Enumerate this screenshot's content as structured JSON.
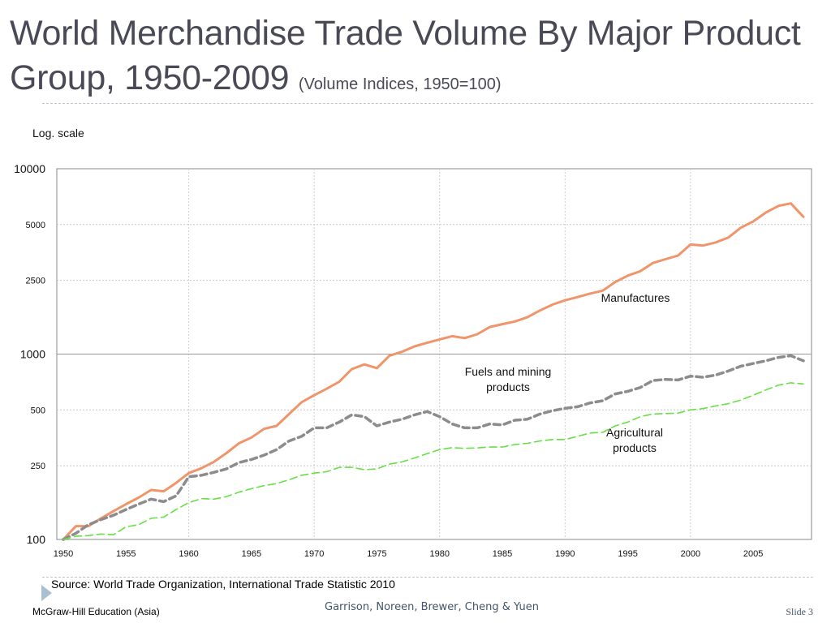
{
  "slide": {
    "title_main": "World Merchandise Trade Volume By Major Product Group, 1950-2009",
    "title_sub": "(Volume Indices, 1950=100)",
    "scale_note": "Log. scale",
    "source": "Source: World Trade Organization, International Trade Statistic 2010",
    "publisher": "McGraw-Hill Education (Asia)",
    "authors": "Garrison, Noreen, Brewer, Cheng & Yuen",
    "slide_number": "Slide 3"
  },
  "chart_data": {
    "type": "line",
    "y_scale": "log",
    "ylim": [
      100,
      10000
    ],
    "xlim": [
      1950,
      2009
    ],
    "grid": true,
    "y_ticks": [
      {
        "value": 100,
        "label": "100"
      },
      {
        "value": 250,
        "label": "250"
      },
      {
        "value": 500,
        "label": "500"
      },
      {
        "value": 1000,
        "label": "1000"
      },
      {
        "value": 2500,
        "label": "2500"
      },
      {
        "value": 5000,
        "label": "5000"
      },
      {
        "value": 10000,
        "label": "10000"
      }
    ],
    "x_ticks": [
      1950,
      1955,
      1960,
      1965,
      1970,
      1975,
      1980,
      1985,
      1990,
      1995,
      2000,
      2005
    ],
    "x": [
      1950,
      1951,
      1952,
      1953,
      1954,
      1955,
      1956,
      1957,
      1958,
      1959,
      1960,
      1961,
      1962,
      1963,
      1964,
      1965,
      1966,
      1967,
      1968,
      1969,
      1970,
      1971,
      1972,
      1973,
      1974,
      1975,
      1976,
      1977,
      1978,
      1979,
      1980,
      1981,
      1982,
      1983,
      1984,
      1985,
      1986,
      1987,
      1988,
      1989,
      1990,
      1991,
      1992,
      1993,
      1994,
      1995,
      1996,
      1997,
      1998,
      1999,
      2000,
      2001,
      2002,
      2003,
      2004,
      2005,
      2006,
      2007,
      2008,
      2009
    ],
    "series": [
      {
        "name": "Manufactures",
        "label_lines": [
          "Manufactures"
        ],
        "color": "#f0956b",
        "style": "solid",
        "values": [
          100,
          118,
          118,
          130,
          142,
          155,
          168,
          185,
          182,
          202,
          228,
          242,
          262,
          292,
          330,
          355,
          395,
          410,
          475,
          550,
          600,
          650,
          710,
          830,
          880,
          840,
          980,
          1030,
          1100,
          1150,
          1200,
          1250,
          1220,
          1280,
          1400,
          1450,
          1500,
          1580,
          1720,
          1850,
          1950,
          2030,
          2120,
          2200,
          2450,
          2650,
          2800,
          3100,
          3250,
          3400,
          3900,
          3850,
          4000,
          4250,
          4800,
          5200,
          5800,
          6300,
          6500,
          5500
        ]
      },
      {
        "name": "Fuels and mining products",
        "label_lines": [
          "Fuels and mining",
          "products"
        ],
        "color": "#8c8c8c",
        "style": "dashed",
        "values": [
          100,
          108,
          120,
          128,
          135,
          145,
          155,
          165,
          160,
          172,
          218,
          222,
          230,
          240,
          260,
          270,
          285,
          305,
          340,
          360,
          400,
          400,
          430,
          470,
          460,
          410,
          430,
          445,
          470,
          490,
          460,
          420,
          400,
          400,
          420,
          415,
          440,
          445,
          475,
          495,
          510,
          520,
          545,
          560,
          610,
          630,
          660,
          720,
          730,
          725,
          760,
          750,
          770,
          810,
          860,
          890,
          920,
          960,
          980,
          920
        ]
      },
      {
        "name": "Agricultural products",
        "label_lines": [
          "Agricultural",
          "products"
        ],
        "color": "#66e044",
        "style": "dashed",
        "values": [
          100,
          104,
          105,
          107,
          106,
          117,
          120,
          130,
          132,
          145,
          158,
          166,
          165,
          170,
          180,
          188,
          195,
          200,
          210,
          222,
          228,
          232,
          245,
          245,
          238,
          240,
          255,
          262,
          275,
          290,
          305,
          313,
          310,
          312,
          315,
          315,
          325,
          330,
          340,
          346,
          346,
          360,
          375,
          378,
          410,
          430,
          460,
          475,
          478,
          480,
          500,
          508,
          525,
          540,
          565,
          600,
          640,
          680,
          700,
          690
        ]
      }
    ]
  }
}
